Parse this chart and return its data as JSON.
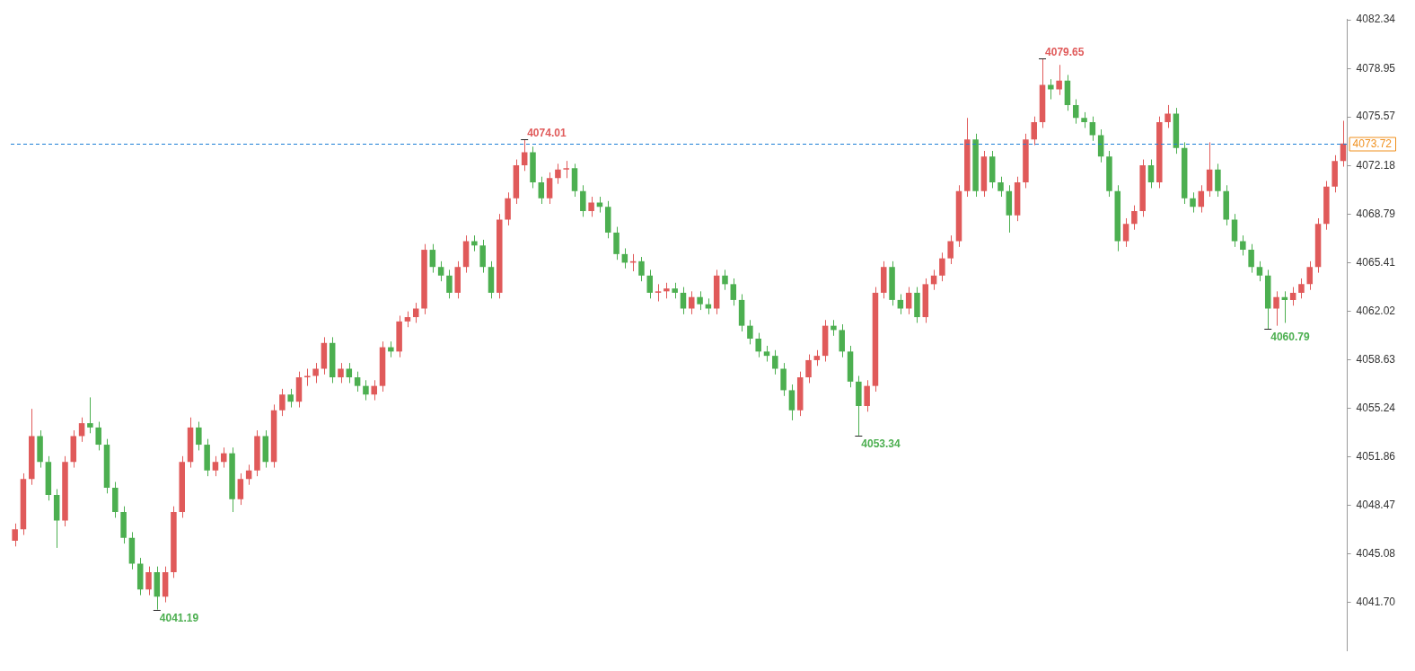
{
  "chart_data": {
    "type": "candlestick",
    "categories": [
      null,
      null,
      null,
      null,
      null,
      null,
      null,
      null,
      null,
      null,
      null,
      null,
      null,
      null,
      null,
      null,
      null,
      null,
      null,
      null,
      null,
      null,
      null,
      null,
      null,
      null,
      null,
      null,
      null,
      null,
      null,
      null,
      null,
      null,
      null,
      null,
      null,
      null,
      null,
      null,
      null,
      null,
      null,
      null,
      null,
      null,
      null,
      null,
      null,
      null,
      null,
      null,
      null,
      null,
      null,
      null,
      null,
      null,
      null,
      null,
      null,
      null,
      null,
      null,
      null,
      null,
      null,
      null,
      null,
      null,
      null,
      null,
      null,
      null,
      null,
      null,
      null,
      null,
      null,
      null,
      null,
      null,
      null,
      null,
      null,
      null,
      null,
      null,
      null,
      null,
      null,
      null,
      null,
      null,
      null,
      null,
      null,
      null,
      null,
      null,
      null,
      null,
      null,
      null,
      null,
      null,
      null,
      null,
      null,
      null,
      null,
      null,
      null,
      null,
      null,
      null,
      null,
      null,
      null,
      null,
      null,
      null,
      null,
      null,
      null,
      null,
      null,
      null,
      null,
      null,
      null,
      null,
      null,
      null,
      null,
      null,
      null,
      null,
      null,
      null,
      null,
      null,
      null,
      null,
      null,
      null,
      null,
      null,
      null,
      null,
      null,
      null,
      null,
      null,
      null,
      null,
      null,
      null,
      null,
      null
    ],
    "ohlc": [
      [
        4046.0,
        4047.2,
        4045.6,
        4046.8
      ],
      [
        4046.8,
        4050.7,
        4046.4,
        4050.3
      ],
      [
        4050.3,
        4055.2,
        4049.9,
        4053.3
      ],
      [
        4053.3,
        4053.7,
        4051.1,
        4051.5
      ],
      [
        4051.5,
        4051.9,
        4048.8,
        4049.2
      ],
      [
        4049.2,
        4049.6,
        4045.5,
        4047.4
      ],
      [
        4047.4,
        4051.9,
        4047.0,
        4051.5
      ],
      [
        4051.5,
        4053.7,
        4051.1,
        4053.3
      ],
      [
        4053.3,
        4054.6,
        4052.9,
        4054.2
      ],
      [
        4054.2,
        4056.0,
        4053.5,
        4053.9
      ],
      [
        4053.9,
        4054.3,
        4052.3,
        4052.7
      ],
      [
        4052.7,
        4053.1,
        4049.3,
        4049.7
      ],
      [
        4049.7,
        4050.1,
        4047.6,
        4048.0
      ],
      [
        4048.0,
        4048.4,
        4045.8,
        4046.2
      ],
      [
        4046.2,
        4046.6,
        4044.0,
        4044.4
      ],
      [
        4044.4,
        4044.8,
        4042.2,
        4042.6
      ],
      [
        4042.6,
        4044.2,
        4042.2,
        4043.8
      ],
      [
        4043.8,
        4044.2,
        4041.19,
        4042.1
      ],
      [
        4042.1,
        4044.2,
        4041.7,
        4043.8
      ],
      [
        4043.8,
        4048.4,
        4043.4,
        4048.0
      ],
      [
        4048.0,
        4051.9,
        4047.6,
        4051.5
      ],
      [
        4051.5,
        4054.6,
        4051.1,
        4053.9
      ],
      [
        4053.9,
        4054.3,
        4052.3,
        4052.7
      ],
      [
        4052.7,
        4053.1,
        4050.5,
        4050.9
      ],
      [
        4050.9,
        4051.9,
        4050.5,
        4051.5
      ],
      [
        4051.5,
        4052.5,
        4051.1,
        4052.1
      ],
      [
        4052.1,
        4052.5,
        4048.0,
        4048.9
      ],
      [
        4048.9,
        4050.7,
        4048.5,
        4050.3
      ],
      [
        4050.3,
        4051.3,
        4049.9,
        4050.9
      ],
      [
        4050.9,
        4053.7,
        4050.5,
        4053.3
      ],
      [
        4053.3,
        4053.7,
        4051.1,
        4051.5
      ],
      [
        4051.5,
        4055.5,
        4051.1,
        4055.1
      ],
      [
        4055.1,
        4056.6,
        4054.7,
        4056.2
      ],
      [
        4056.2,
        4056.6,
        4055.3,
        4055.7
      ],
      [
        4055.7,
        4057.8,
        4055.3,
        4057.4
      ],
      [
        4057.4,
        4058.0,
        4056.8,
        4057.5
      ],
      [
        4057.5,
        4058.4,
        4057.0,
        4058.0
      ],
      [
        4058.0,
        4060.2,
        4057.6,
        4059.8
      ],
      [
        4059.8,
        4060.2,
        4057.0,
        4057.4
      ],
      [
        4057.4,
        4058.4,
        4057.0,
        4058.0
      ],
      [
        4058.0,
        4058.4,
        4057.0,
        4057.4
      ],
      [
        4057.4,
        4057.8,
        4056.4,
        4056.8
      ],
      [
        4056.8,
        4057.2,
        4055.8,
        4056.2
      ],
      [
        4056.2,
        4057.2,
        4055.8,
        4056.8
      ],
      [
        4056.8,
        4059.9,
        4056.4,
        4059.5
      ],
      [
        4059.5,
        4059.9,
        4058.8,
        4059.2
      ],
      [
        4059.2,
        4061.7,
        4058.8,
        4061.3
      ],
      [
        4061.3,
        4062.0,
        4060.9,
        4061.6
      ],
      [
        4061.6,
        4062.6,
        4061.2,
        4062.2
      ],
      [
        4062.2,
        4066.7,
        4061.8,
        4066.3
      ],
      [
        4066.3,
        4066.7,
        4064.7,
        4065.1
      ],
      [
        4065.1,
        4065.5,
        4064.1,
        4064.5
      ],
      [
        4064.5,
        4064.9,
        4062.9,
        4063.3
      ],
      [
        4063.3,
        4065.5,
        4062.9,
        4065.1
      ],
      [
        4065.1,
        4067.3,
        4064.7,
        4066.9
      ],
      [
        4066.9,
        4067.3,
        4066.2,
        4066.6
      ],
      [
        4066.6,
        4067.0,
        4064.7,
        4065.1
      ],
      [
        4065.1,
        4065.5,
        4062.9,
        4063.3
      ],
      [
        4063.3,
        4068.8,
        4062.9,
        4068.4
      ],
      [
        4068.4,
        4070.3,
        4068.0,
        4069.9
      ],
      [
        4069.9,
        4072.6,
        4069.5,
        4072.2
      ],
      [
        4072.2,
        4074.01,
        4071.8,
        4073.1
      ],
      [
        4073.1,
        4073.5,
        4070.6,
        4071.0
      ],
      [
        4071.0,
        4071.4,
        4069.5,
        4069.9
      ],
      [
        4069.9,
        4071.7,
        4069.5,
        4071.3
      ],
      [
        4071.3,
        4072.3,
        4070.9,
        4071.9
      ],
      [
        4071.9,
        4072.5,
        4071.3,
        4072.0
      ],
      [
        4072.0,
        4072.3,
        4070.0,
        4070.4
      ],
      [
        4070.4,
        4070.8,
        4068.6,
        4069.0
      ],
      [
        4069.0,
        4070.0,
        4068.6,
        4069.6
      ],
      [
        4069.6,
        4070.0,
        4068.9,
        4069.3
      ],
      [
        4069.3,
        4069.7,
        4067.1,
        4067.5
      ],
      [
        4067.5,
        4067.9,
        4065.6,
        4066.0
      ],
      [
        4066.0,
        4066.4,
        4065.0,
        4065.4
      ],
      [
        4065.4,
        4066.0,
        4064.8,
        4065.5
      ],
      [
        4065.5,
        4065.8,
        4064.1,
        4064.5
      ],
      [
        4064.5,
        4064.9,
        4062.9,
        4063.3
      ],
      [
        4063.3,
        4063.9,
        4062.7,
        4063.4
      ],
      [
        4063.4,
        4064.0,
        4062.9,
        4063.6
      ],
      [
        4063.6,
        4064.0,
        4062.9,
        4063.3
      ],
      [
        4063.3,
        4063.7,
        4061.8,
        4062.2
      ],
      [
        4062.2,
        4063.4,
        4061.8,
        4063.0
      ],
      [
        4063.0,
        4063.4,
        4062.1,
        4062.5
      ],
      [
        4062.5,
        4062.9,
        4061.8,
        4062.2
      ],
      [
        4062.2,
        4064.9,
        4061.8,
        4064.5
      ],
      [
        4064.5,
        4064.9,
        4063.5,
        4063.9
      ],
      [
        4063.9,
        4064.3,
        4062.4,
        4062.8
      ],
      [
        4062.8,
        4063.2,
        4060.6,
        4061.0
      ],
      [
        4061.0,
        4061.4,
        4059.7,
        4060.1
      ],
      [
        4060.1,
        4060.5,
        4058.8,
        4059.2
      ],
      [
        4059.2,
        4059.6,
        4058.5,
        4058.9
      ],
      [
        4058.9,
        4059.3,
        4057.6,
        4058.0
      ],
      [
        4058.0,
        4058.4,
        4056.1,
        4056.5
      ],
      [
        4056.5,
        4056.9,
        4054.4,
        4055.1
      ],
      [
        4055.1,
        4057.8,
        4054.7,
        4057.4
      ],
      [
        4057.4,
        4059.0,
        4057.0,
        4058.6
      ],
      [
        4058.6,
        4059.3,
        4058.2,
        4058.9
      ],
      [
        4058.9,
        4061.4,
        4058.5,
        4061.0
      ],
      [
        4061.0,
        4061.4,
        4060.3,
        4060.7
      ],
      [
        4060.7,
        4061.1,
        4058.8,
        4059.2
      ],
      [
        4059.2,
        4059.6,
        4056.7,
        4057.1
      ],
      [
        4057.1,
        4057.5,
        4053.34,
        4055.4
      ],
      [
        4055.4,
        4057.2,
        4055.0,
        4056.8
      ],
      [
        4056.8,
        4063.7,
        4056.4,
        4063.3
      ],
      [
        4063.3,
        4065.5,
        4062.9,
        4065.1
      ],
      [
        4065.1,
        4065.5,
        4062.4,
        4062.8
      ],
      [
        4062.8,
        4063.2,
        4061.8,
        4062.2
      ],
      [
        4062.2,
        4063.7,
        4061.8,
        4063.3
      ],
      [
        4063.3,
        4063.7,
        4061.2,
        4061.6
      ],
      [
        4061.6,
        4064.3,
        4061.2,
        4063.9
      ],
      [
        4063.9,
        4064.9,
        4063.5,
        4064.5
      ],
      [
        4064.5,
        4066.1,
        4064.1,
        4065.7
      ],
      [
        4065.7,
        4067.3,
        4065.3,
        4066.9
      ],
      [
        4066.9,
        4070.8,
        4066.5,
        4070.4
      ],
      [
        4070.4,
        4075.5,
        4070.0,
        4074.0
      ],
      [
        4074.0,
        4074.4,
        4070.0,
        4070.4
      ],
      [
        4070.4,
        4073.2,
        4070.0,
        4072.8
      ],
      [
        4072.8,
        4073.2,
        4070.6,
        4071.0
      ],
      [
        4071.0,
        4071.4,
        4070.0,
        4070.4
      ],
      [
        4070.4,
        4070.8,
        4067.5,
        4068.7
      ],
      [
        4068.7,
        4071.4,
        4068.3,
        4071.0
      ],
      [
        4071.0,
        4074.4,
        4070.6,
        4074.0
      ],
      [
        4074.0,
        4075.6,
        4073.6,
        4075.2
      ],
      [
        4075.2,
        4079.65,
        4074.8,
        4077.8
      ],
      [
        4077.8,
        4078.2,
        4076.8,
        4077.5
      ],
      [
        4077.5,
        4079.2,
        4077.1,
        4078.1
      ],
      [
        4078.1,
        4078.5,
        4076.0,
        4076.4
      ],
      [
        4076.4,
        4076.8,
        4075.1,
        4075.5
      ],
      [
        4075.5,
        4075.9,
        4074.8,
        4075.2
      ],
      [
        4075.2,
        4075.6,
        4073.9,
        4074.3
      ],
      [
        4074.3,
        4074.7,
        4072.4,
        4072.8
      ],
      [
        4072.8,
        4073.2,
        4070.0,
        4070.4
      ],
      [
        4070.4,
        4070.8,
        4066.2,
        4066.9
      ],
      [
        4066.9,
        4068.5,
        4066.5,
        4068.1
      ],
      [
        4068.1,
        4069.4,
        4067.7,
        4069.0
      ],
      [
        4069.0,
        4072.6,
        4068.6,
        4072.2
      ],
      [
        4072.2,
        4072.6,
        4070.6,
        4071.0
      ],
      [
        4071.0,
        4075.6,
        4070.6,
        4075.2
      ],
      [
        4075.2,
        4076.4,
        4074.8,
        4075.8
      ],
      [
        4075.8,
        4076.2,
        4073.0,
        4073.4
      ],
      [
        4073.4,
        4073.8,
        4069.5,
        4069.9
      ],
      [
        4069.9,
        4070.3,
        4068.9,
        4069.3
      ],
      [
        4069.3,
        4070.8,
        4068.9,
        4070.4
      ],
      [
        4070.4,
        4073.8,
        4070.0,
        4071.9
      ],
      [
        4071.9,
        4072.3,
        4070.0,
        4070.4
      ],
      [
        4070.4,
        4070.8,
        4068.0,
        4068.4
      ],
      [
        4068.4,
        4068.8,
        4066.5,
        4066.9
      ],
      [
        4066.9,
        4067.3,
        4065.9,
        4066.3
      ],
      [
        4066.3,
        4066.7,
        4064.7,
        4065.1
      ],
      [
        4065.1,
        4065.5,
        4064.1,
        4064.5
      ],
      [
        4064.5,
        4064.9,
        4060.79,
        4062.2
      ],
      [
        4062.2,
        4063.4,
        4061.0,
        4063.0
      ],
      [
        4063.0,
        4063.4,
        4061.2,
        4062.8
      ],
      [
        4062.8,
        4063.7,
        4062.4,
        4063.3
      ],
      [
        4063.3,
        4064.3,
        4062.9,
        4063.9
      ],
      [
        4063.9,
        4065.5,
        4063.5,
        4065.1
      ],
      [
        4065.1,
        4068.5,
        4064.7,
        4068.1
      ],
      [
        4068.1,
        4071.1,
        4067.7,
        4070.7
      ],
      [
        4070.7,
        4072.9,
        4070.3,
        4072.5
      ],
      [
        4072.5,
        4075.3,
        4072.1,
        4073.72
      ]
    ],
    "colors": [
      "#e05a5a",
      "#e05a5a",
      "#e05a5a",
      "#4caf50",
      "#4caf50",
      "#4caf50",
      "#e05a5a",
      "#e05a5a",
      "#e05a5a",
      "#4caf50",
      "#4caf50",
      "#4caf50",
      "#4caf50",
      "#4caf50",
      "#4caf50",
      "#4caf50",
      "#e05a5a",
      "#4caf50",
      "#e05a5a",
      "#e05a5a",
      "#e05a5a",
      "#e05a5a",
      "#4caf50",
      "#4caf50",
      "#e05a5a",
      "#e05a5a",
      "#4caf50",
      "#e05a5a",
      "#e05a5a",
      "#e05a5a",
      "#4caf50",
      "#e05a5a",
      "#e05a5a",
      "#4caf50",
      "#e05a5a",
      "#e05a5a",
      "#e05a5a",
      "#e05a5a",
      "#4caf50",
      "#e05a5a",
      "#4caf50",
      "#4caf50",
      "#4caf50",
      "#e05a5a",
      "#e05a5a",
      "#4caf50",
      "#e05a5a",
      "#e05a5a",
      "#e05a5a",
      "#e05a5a",
      "#4caf50",
      "#4caf50",
      "#4caf50",
      "#e05a5a",
      "#e05a5a",
      "#4caf50",
      "#4caf50",
      "#4caf50",
      "#e05a5a",
      "#e05a5a",
      "#e05a5a",
      "#e05a5a",
      "#4caf50",
      "#4caf50",
      "#e05a5a",
      "#e05a5a",
      "#e05a5a",
      "#4caf50",
      "#4caf50",
      "#e05a5a",
      "#4caf50",
      "#4caf50",
      "#4caf50",
      "#4caf50",
      "#e05a5a",
      "#4caf50",
      "#4caf50",
      "#e05a5a",
      "#e05a5a",
      "#4caf50",
      "#4caf50",
      "#e05a5a",
      "#4caf50",
      "#4caf50",
      "#e05a5a",
      "#4caf50",
      "#4caf50",
      "#4caf50",
      "#4caf50",
      "#4caf50",
      "#4caf50",
      "#4caf50",
      "#4caf50",
      "#4caf50",
      "#e05a5a",
      "#e05a5a",
      "#e05a5a",
      "#e05a5a",
      "#4caf50",
      "#4caf50",
      "#4caf50",
      "#4caf50",
      "#e05a5a",
      "#e05a5a",
      "#e05a5a",
      "#4caf50",
      "#4caf50",
      "#e05a5a",
      "#4caf50",
      "#e05a5a",
      "#e05a5a",
      "#e05a5a",
      "#e05a5a",
      "#e05a5a",
      "#e05a5a",
      "#4caf50",
      "#e05a5a",
      "#4caf50",
      "#4caf50",
      "#4caf50",
      "#e05a5a",
      "#e05a5a",
      "#e05a5a",
      "#e05a5a",
      "#4caf50",
      "#e05a5a",
      "#4caf50",
      "#4caf50",
      "#4caf50",
      "#4caf50",
      "#4caf50",
      "#4caf50",
      "#4caf50",
      "#e05a5a",
      "#e05a5a",
      "#e05a5a",
      "#4caf50",
      "#e05a5a",
      "#e05a5a",
      "#4caf50",
      "#4caf50",
      "#4caf50",
      "#e05a5a",
      "#e05a5a",
      "#4caf50",
      "#4caf50",
      "#4caf50",
      "#4caf50",
      "#4caf50",
      "#4caf50",
      "#4caf50",
      "#e05a5a",
      "#4caf50",
      "#e05a5a",
      "#e05a5a",
      "#e05a5a",
      "#e05a5a",
      "#e05a5a",
      "#e05a5a",
      "#e05a5a"
    ],
    "ylim": [
      4038.3,
      4082.4
    ],
    "yticks": [
      {
        "value": 4041.7,
        "label": "4041.70"
      },
      4045.08,
      4048.47,
      4051.86,
      4055.24,
      4058.63,
      4062.02,
      4065.41,
      4068.79,
      4072.18,
      4075.57,
      4078.95,
      4082.34
    ],
    "ref_lines": [
      {
        "axis": "y",
        "value": 4073.72,
        "label": "4073.72",
        "color": "#1e7fd6",
        "line_style": "dashed"
      }
    ],
    "annotations": [
      "4074.01",
      "4079.65",
      "4041.19",
      "4053.34",
      "4060.79"
    ],
    "grid": false,
    "legend": false,
    "tick_labels": "y"
  }
}
